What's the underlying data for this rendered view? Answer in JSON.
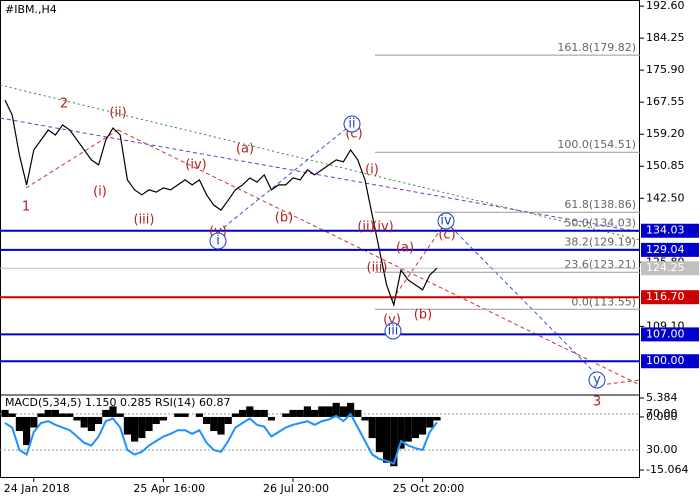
{
  "chart_data": [
    {
      "type": "line",
      "title": "#IBM.,H4",
      "categories": [
        null,
        null,
        null,
        null,
        "24 Jan 2018",
        null,
        null,
        null,
        null,
        null,
        null,
        null,
        null,
        null,
        null,
        null,
        null,
        null,
        null,
        null,
        null,
        null,
        "25 Apr 16:00",
        null,
        null,
        null,
        null,
        null,
        null,
        null,
        null,
        null,
        null,
        null,
        null,
        null,
        null,
        null,
        null,
        null,
        "26 Jul 20:00",
        null,
        null,
        null,
        null,
        null,
        null,
        null,
        null,
        null,
        null,
        null,
        null,
        null,
        null,
        null,
        null,
        null,
        "25 Oct 20:00",
        null,
        null
      ],
      "series": [
        {
          "color": "#000000",
          "values": [
            168.1,
            164.2,
            153.8,
            146.0,
            155.1,
            157.7,
            160.3,
            159.0,
            161.6,
            160.3,
            157.7,
            155.1,
            152.5,
            151.2,
            157.7,
            160.8,
            159.0,
            147.3,
            144.7,
            143.4,
            144.7,
            144.1,
            145.2,
            144.7,
            146.0,
            147.3,
            146.0,
            147.3,
            143.4,
            140.7,
            139.4,
            142.0,
            144.7,
            146.0,
            147.8,
            146.7,
            148.6,
            144.7,
            146.0,
            146.0,
            147.8,
            147.3,
            149.9,
            148.6,
            149.9,
            151.2,
            152.5,
            152.0,
            155.1,
            152.5,
            147.3,
            138.1,
            129.0,
            119.9,
            114.7,
            123.8,
            121.2,
            119.9,
            118.6,
            122.5,
            124.25
          ]
        }
      ],
      "ylim": [
        92.5,
        194.2
      ],
      "yticks": [
        {
          "value": 192.6,
          "label": "192.60"
        },
        {
          "value": 184.25,
          "label": "184.25"
        },
        {
          "value": 175.9,
          "label": "175.90"
        },
        {
          "value": 167.55,
          "label": "167.55"
        },
        {
          "value": 159.2,
          "label": "159.20"
        },
        {
          "value": 150.85,
          "label": "150.85"
        },
        {
          "value": 142.5,
          "label": "142.50"
        },
        {
          "value": 125.8,
          "label": "125.80"
        },
        {
          "value": 109.1,
          "label": "109.10"
        }
      ],
      "fib_levels": [
        {
          "value": 179.82,
          "label": "161.8(179.82)"
        },
        {
          "value": 154.51,
          "label": "100.0(154.51)"
        },
        {
          "value": 138.86,
          "label": "61.8(138.86)"
        },
        {
          "value": 134.03,
          "label": "50.0(134.03)"
        },
        {
          "value": 129.19,
          "label": "38.2(129.19)"
        },
        {
          "value": 123.21,
          "label": "23.6(123.21)"
        },
        {
          "value": 113.55,
          "label": "0.0(113.55)"
        }
      ],
      "levels": [
        {
          "value": 134.03,
          "label": "134.03",
          "color": "#0000cd"
        },
        {
          "value": 129.04,
          "label": "129.04",
          "color": "#0000cd"
        },
        {
          "value": 124.25,
          "label": "124.25",
          "color": "#c0c0c0"
        },
        {
          "value": 116.7,
          "label": "116.70",
          "color": "#cc0000"
        },
        {
          "value": 107,
          "label": "107.00",
          "color": "#0000cd"
        },
        {
          "value": 100,
          "label": "100.00",
          "color": "#0000cd"
        }
      ],
      "annotations": [
        {
          "text": "1",
          "color": "#b22222"
        },
        {
          "text": "2",
          "color": "#b22222"
        },
        {
          "text": "(i)",
          "color": "#b22222"
        },
        {
          "text": "(ii)",
          "color": "#b22222"
        },
        {
          "text": "(iii)",
          "color": "#b22222"
        },
        {
          "text": "(iv)",
          "color": "#b22222"
        },
        {
          "text": "(a)",
          "color": "#b22222"
        },
        {
          "text": "(b)",
          "color": "#b22222"
        },
        {
          "text": "(v)",
          "color": "#b22222"
        },
        {
          "text": "i",
          "color": "#1f3fbf",
          "style": "circle"
        },
        {
          "text": "(c)",
          "color": "#b22222"
        },
        {
          "text": "ii",
          "color": "#1f3fbf",
          "style": "circle"
        },
        {
          "text": "(i)",
          "color": "#b22222"
        },
        {
          "text": "(ii)",
          "color": "#b22222"
        },
        {
          "text": "(iv)",
          "color": "#b22222"
        },
        {
          "text": "(iii)",
          "color": "#b22222"
        },
        {
          "text": "(a)",
          "color": "#b22222"
        },
        {
          "text": "(b)",
          "color": "#b22222"
        },
        {
          "text": "(v)",
          "color": "#b22222"
        },
        {
          "text": "iii",
          "color": "#1f3fbf",
          "style": "circle"
        },
        {
          "text": "iv",
          "color": "#1f3fbf",
          "style": "circle"
        },
        {
          "text": "(c)",
          "color": "#b22222"
        },
        {
          "text": "y",
          "color": "#1f3fbf",
          "style": "circle"
        },
        {
          "text": "3",
          "color": "#b22222"
        }
      ]
    },
    {
      "type": "bar",
      "title": "MACD(5,34,5) 1.150 0.285 RSI(14) 60.87",
      "series": [
        {
          "color": "#000000",
          "values": [
            2,
            1,
            -4,
            -8,
            -3,
            1,
            2,
            2,
            1,
            1,
            -1,
            -3,
            -4,
            -2,
            2,
            3,
            1,
            -5,
            -7,
            -6,
            -4,
            -2,
            -1,
            0,
            1,
            1,
            0,
            1,
            -2,
            -4,
            -5,
            -2,
            1,
            2,
            3,
            2,
            2,
            -1,
            0,
            1,
            2,
            2,
            3,
            2,
            3,
            3,
            4,
            3,
            4,
            2,
            -1,
            -6,
            -10,
            -13,
            -14,
            -9,
            -7,
            -6,
            -5,
            -3,
            -1
          ]
        },
        {
          "color": "#1e90ff",
          "axis": "y2",
          "values": [
            60,
            55,
            30,
            25,
            50,
            60,
            62,
            58,
            55,
            52,
            45,
            38,
            35,
            45,
            62,
            65,
            55,
            30,
            25,
            28,
            35,
            40,
            45,
            48,
            52,
            52,
            48,
            52,
            38,
            30,
            28,
            40,
            55,
            60,
            65,
            58,
            56,
            45,
            50,
            55,
            58,
            60,
            62,
            58,
            62,
            64,
            68,
            62,
            70,
            55,
            40,
            25,
            20,
            18,
            15,
            40,
            35,
            32,
            30,
            50,
            60.87
          ]
        }
      ],
      "ylim": [
        -15.064,
        5.384
      ],
      "yticks": [
        {
          "value": 5.384,
          "label": "5.384"
        },
        {
          "value": 0,
          "label": "0.000"
        },
        {
          "value": -15.064,
          "label": "-15.064"
        }
      ],
      "y2lim": [
        7.8,
        87.8
      ],
      "y2ticks": [
        {
          "value": 70,
          "label": "70.00"
        },
        {
          "value": 30,
          "label": "30.00"
        }
      ]
    }
  ]
}
